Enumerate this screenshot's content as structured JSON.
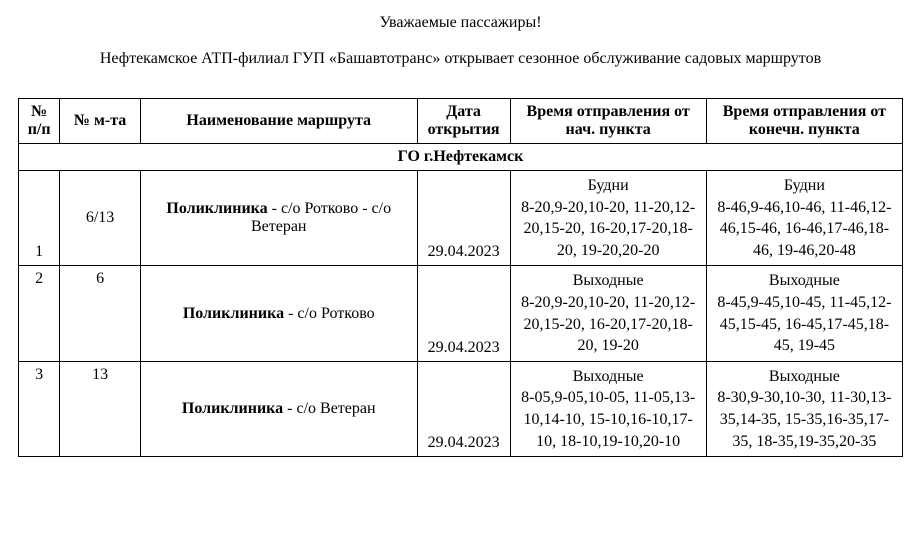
{
  "heading": "Уважаемые пассажиры!",
  "subheading": "Нефтекамское АТП-филиал ГУП «Башавтотранс» открывает сезонное обслуживание садовых маршрутов",
  "columns": {
    "num": "№ п/п",
    "route_no": "№ м-та",
    "route_name": "Наименование маршрута",
    "open_date": "Дата открытия",
    "dep_start": "Время отправления от нач. пункта",
    "dep_end": "Время отправления от конечн. пункта"
  },
  "section_label": "ГО г.Нефтекамск",
  "rows": [
    {
      "num": "1",
      "route_no": "6/13",
      "route_bold": "Поликлиника",
      "route_rest": " - с/о Ротково - с/о Ветеран",
      "date": "29.04.2023",
      "dep_start_label": "Будни",
      "dep_start_times": "8-20,9-20,10-20, 11-20,12-20,15-20, 16-20,17-20,18-20, 19-20,20-20",
      "dep_end_label": "Будни",
      "dep_end_times": "8-46,9-46,10-46, 11-46,12-46,15-46, 16-46,17-46,18-46, 19-46,20-48"
    },
    {
      "num": "2",
      "route_no": "6",
      "route_bold": "Поликлиника",
      "route_rest": " - с/о Ротково",
      "date": "29.04.2023",
      "dep_start_label": "Выходные",
      "dep_start_times": "8-20,9-20,10-20, 11-20,12-20,15-20, 16-20,17-20,18-20, 19-20",
      "dep_end_label": "Выходные",
      "dep_end_times": "8-45,9-45,10-45, 11-45,12-45,15-45, 16-45,17-45,18-45, 19-45"
    },
    {
      "num": "3",
      "route_no": "13",
      "route_bold": "Поликлиника",
      "route_rest": " - с/о Ветеран",
      "date": "29.04.2023",
      "dep_start_label": "Выходные",
      "dep_start_times": "8-05,9-05,10-05, 11-05,13-10,14-10, 15-10,16-10,17-10, 18-10,19-10,20-10",
      "dep_end_label": "Выходные",
      "dep_end_times": "8-30,9-30,10-30, 11-30,13-35,14-35, 15-35,16-35,17-35, 18-35,19-35,20-35"
    }
  ],
  "style": {
    "font_family": "Times New Roman",
    "font_size_pt": 12,
    "border_color": "#000000",
    "background_color": "#ffffff",
    "text_color": "#000000"
  }
}
